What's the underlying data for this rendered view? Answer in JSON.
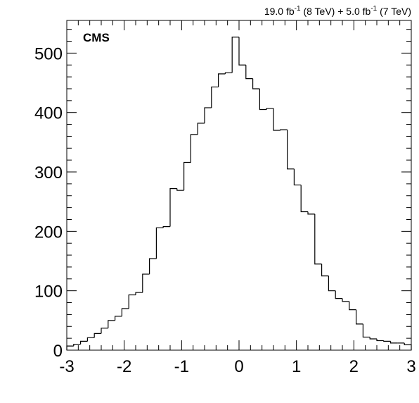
{
  "chart_data": {
    "type": "histogram",
    "lumi": [
      "19.0 fb",
      "-1",
      " (8 TeV) + 5.0 fb",
      "-1",
      " (7 TeV)"
    ],
    "label": "CMS",
    "bins": [
      -3,
      -2.88,
      -2.76,
      -2.64,
      -2.52,
      -2.4,
      -2.28,
      -2.16,
      -2.04,
      -1.92,
      -1.8,
      -1.68,
      -1.56,
      -1.44,
      -1.32,
      -1.2,
      -1.08,
      -0.96,
      -0.84,
      -0.72,
      -0.6,
      -0.48,
      -0.36,
      -0.24,
      -0.12,
      0,
      0.12,
      0.24,
      0.36,
      0.48,
      0.6,
      0.72,
      0.84,
      0.96,
      1.08,
      1.2,
      1.32,
      1.44,
      1.56,
      1.68,
      1.8,
      1.92,
      2.04,
      2.16,
      2.28,
      2.4,
      2.52,
      2.64,
      2.76,
      2.88,
      3
    ],
    "values": [
      7,
      10,
      15,
      21,
      28,
      37,
      50,
      57,
      70,
      93,
      97,
      128,
      154,
      206,
      208,
      272,
      269,
      316,
      363,
      382,
      408,
      443,
      465,
      467,
      527,
      480,
      457,
      440,
      405,
      407,
      370,
      371,
      305,
      278,
      233,
      229,
      145,
      125,
      100,
      87,
      82,
      68,
      44,
      22,
      19,
      16,
      15,
      12,
      12,
      9
    ],
    "color": "#000000",
    "xlim": [
      -3,
      3
    ],
    "xticks": [
      -3,
      -2,
      -1,
      0,
      1,
      2,
      3
    ],
    "ylim": [
      0,
      555
    ],
    "yticks": [
      0,
      100,
      200,
      300,
      400,
      500
    ]
  }
}
